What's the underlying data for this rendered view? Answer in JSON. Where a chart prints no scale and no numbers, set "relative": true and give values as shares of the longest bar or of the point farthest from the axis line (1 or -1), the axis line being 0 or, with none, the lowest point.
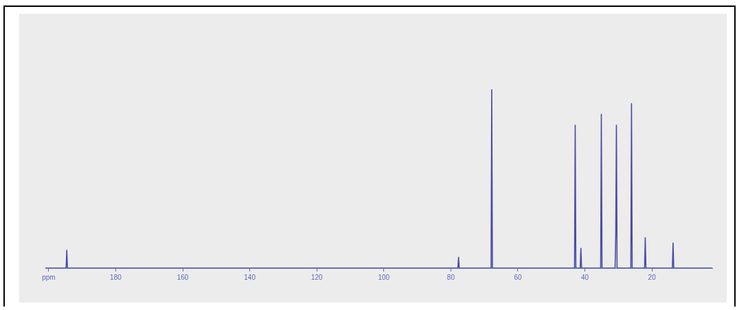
{
  "chart_data": {
    "type": "line",
    "relative": true,
    "xlim": [
      201,
      2
    ],
    "xticks": [
      {
        "value": 200,
        "label": "ppm"
      },
      180,
      160,
      140,
      120,
      100,
      80,
      60,
      40,
      20
    ],
    "x": [
      201,
      194.8,
      194.6,
      194.4,
      77.9,
      77.7,
      77.5,
      68.0,
      67.8,
      67.6,
      43.1,
      42.9,
      42.7,
      41.4,
      41.2,
      41.0,
      35.3,
      35.1,
      34.9,
      31.0,
      30.8,
      30.6,
      30.4,
      26.3,
      26.1,
      25.9,
      22.2,
      22.0,
      21.8,
      13.9,
      13.7,
      13.5,
      2
    ],
    "series": [
      {
        "color": "#4a4aa8",
        "values": [
          0,
          0,
          0.1,
          0,
          0,
          0.06,
          0,
          0,
          1,
          0,
          0,
          0.8,
          0,
          0,
          0.11,
          0,
          0,
          0.86,
          0,
          0,
          0.18,
          0.8,
          0,
          0,
          0.92,
          0,
          0,
          0.17,
          0,
          0,
          0.14,
          0,
          0
        ]
      }
    ],
    "grid": false,
    "legend": false,
    "marker": "none",
    "line_style": "solid"
  }
}
